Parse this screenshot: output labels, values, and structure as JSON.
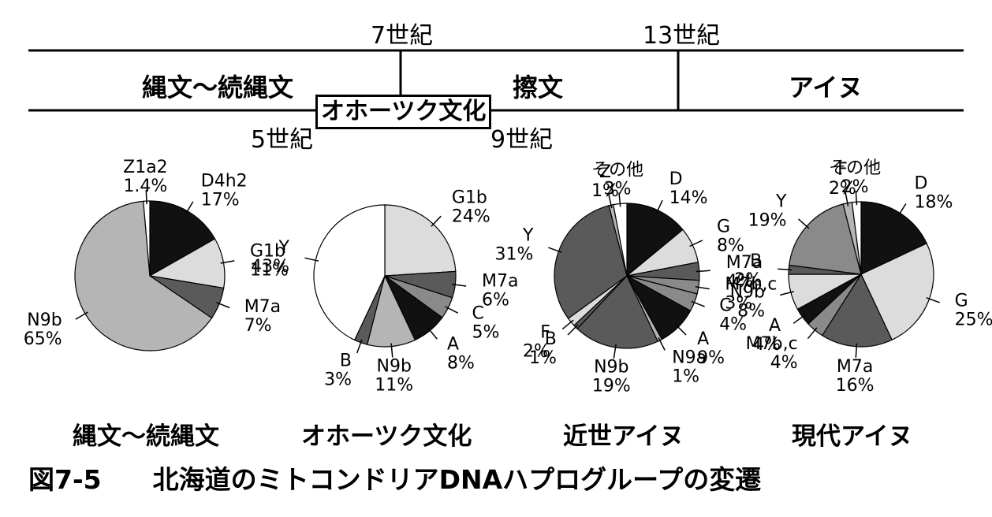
{
  "timeline": {
    "top_labels": [
      "7世紀",
      "13世紀"
    ],
    "eras": [
      "縄文～続縄文",
      "擦文",
      "アイヌ"
    ],
    "okhotsk_box": "オホーツク文化",
    "bottom_labels": [
      "5世紀",
      "9世紀"
    ]
  },
  "pie_titles": [
    "縄文～続縄文",
    "オホーツク文化",
    "近世アイヌ",
    "現代アイヌ"
  ],
  "caption": {
    "figure_number": "図7-5",
    "text": "北海道のミトコンドリアDNAハプログループの変遷"
  },
  "colors": {
    "black": "#111111",
    "dark": "#5a5a5a",
    "mid": "#8a8a8a",
    "light": "#b5b5b5",
    "pale": "#dcdcdc",
    "white": "#ffffff"
  },
  "chart_data": [
    {
      "type": "pie",
      "title": "縄文～続縄文",
      "slices": [
        {
          "label": "D4h2",
          "value": 17,
          "value_label": "17%",
          "fill": "black"
        },
        {
          "label": "G1b",
          "value": 11,
          "value_label": "11%",
          "fill": "pale"
        },
        {
          "label": "M7a",
          "value": 7,
          "value_label": "7%",
          "fill": "dark"
        },
        {
          "label": "N9b",
          "value": 65,
          "value_label": "65%",
          "fill": "light"
        },
        {
          "label": "Z1a2",
          "value": 1.4,
          "value_label": "1.4%",
          "fill": "white"
        }
      ]
    },
    {
      "type": "pie",
      "title": "オホーツク文化",
      "slices": [
        {
          "label": "G1b",
          "value": 24,
          "value_label": "24%",
          "fill": "pale"
        },
        {
          "label": "M7a",
          "value": 6,
          "value_label": "6%",
          "fill": "dark"
        },
        {
          "label": "C",
          "value": 5,
          "value_label": "5%",
          "fill": "mid"
        },
        {
          "label": "A",
          "value": 8,
          "value_label": "8%",
          "fill": "black"
        },
        {
          "label": "N9b",
          "value": 11,
          "value_label": "11%",
          "fill": "light"
        },
        {
          "label": "B",
          "value": 3,
          "value_label": "3%",
          "fill": "dark"
        },
        {
          "label": "Y",
          "value": 43,
          "value_label": "43%",
          "fill": "white"
        }
      ]
    },
    {
      "type": "pie",
      "title": "近世アイヌ",
      "slices": [
        {
          "label": "D",
          "value": 14,
          "value_label": "14%",
          "fill": "black"
        },
        {
          "label": "G",
          "value": 8,
          "value_label": "8%",
          "fill": "pale"
        },
        {
          "label": "M7a",
          "value": 4,
          "value_label": "4%",
          "fill": "dark"
        },
        {
          "label": "M7b,c",
          "value": 3,
          "value_label": "3%",
          "fill": "mid"
        },
        {
          "label": "C",
          "value": 4,
          "value_label": "4%",
          "fill": "mid"
        },
        {
          "label": "A",
          "value": 9,
          "value_label": "9%",
          "fill": "black"
        },
        {
          "label": "N9a",
          "value": 1,
          "value_label": "1%",
          "fill": "light"
        },
        {
          "label": "N9b",
          "value": 19,
          "value_label": "19%",
          "fill": "dark"
        },
        {
          "label": "B",
          "value": 1,
          "value_label": "1%",
          "fill": "dark"
        },
        {
          "label": "F",
          "value": 2,
          "value_label": "2%",
          "fill": "pale"
        },
        {
          "label": "Y",
          "value": 31,
          "value_label": "31%",
          "fill": "dark"
        },
        {
          "label": "Z",
          "value": 1,
          "value_label": "1%",
          "fill": "light"
        },
        {
          "label": "その他",
          "value": 3,
          "value_label": "3%",
          "fill": "white"
        }
      ]
    },
    {
      "type": "pie",
      "title": "現代アイヌ",
      "slices": [
        {
          "label": "D",
          "value": 18,
          "value_label": "18%",
          "fill": "black"
        },
        {
          "label": "G",
          "value": 25,
          "value_label": "25%",
          "fill": "pale"
        },
        {
          "label": "M7a",
          "value": 16,
          "value_label": "16%",
          "fill": "dark"
        },
        {
          "label": "M7b,c",
          "value": 4,
          "value_label": "4%",
          "fill": "mid"
        },
        {
          "label": "A",
          "value": 4,
          "value_label": "4%",
          "fill": "black"
        },
        {
          "label": "N9b",
          "value": 8,
          "value_label": "8%",
          "fill": "pale"
        },
        {
          "label": "B",
          "value": 2,
          "value_label": "2%",
          "fill": "dark"
        },
        {
          "label": "Y",
          "value": 19,
          "value_label": "19%",
          "fill": "mid"
        },
        {
          "label": "F",
          "value": 2,
          "value_label": "2%",
          "fill": "light"
        },
        {
          "label": "その他",
          "value": 2,
          "value_label": "2%",
          "fill": "white"
        }
      ]
    }
  ]
}
